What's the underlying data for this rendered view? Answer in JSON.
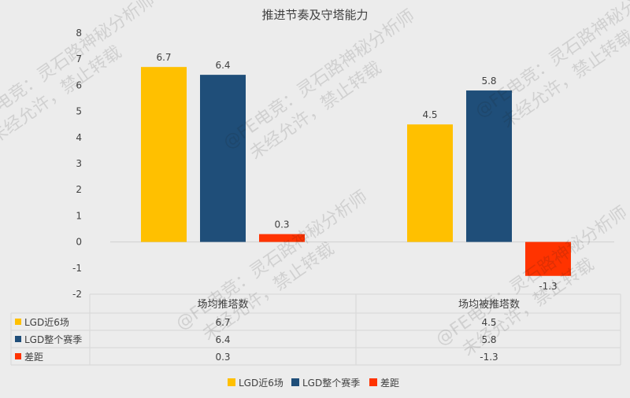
{
  "chart_data": {
    "type": "bar",
    "title": "推进节奏及守塔能力",
    "categories": [
      "场均推塔数",
      "场均被推塔数"
    ],
    "series": [
      {
        "name": "LGD近6场",
        "values": [
          6.7,
          4.5
        ],
        "labels": [
          "6.7",
          "4.5"
        ],
        "color": "#ffc000"
      },
      {
        "name": "LGD整个赛季",
        "values": [
          6.4,
          5.8
        ],
        "labels": [
          "6.4",
          "5.8"
        ],
        "color": "#1f4e79"
      },
      {
        "name": "差距",
        "values": [
          0.3,
          -1.3
        ],
        "labels": [
          "0.3",
          "-1.3"
        ],
        "color": "#ff3300"
      }
    ],
    "ylim": [
      -2,
      8
    ],
    "yticks": [
      "-2",
      "-1",
      "0",
      "1",
      "2",
      "3",
      "4",
      "5",
      "6",
      "7",
      "8"
    ],
    "grid": false,
    "legend_position": "bottom",
    "data_table": true
  },
  "watermark": {
    "line1": "@FE电竞：灵石路神秘分析师",
    "line2": "未经允许，禁止转载"
  }
}
